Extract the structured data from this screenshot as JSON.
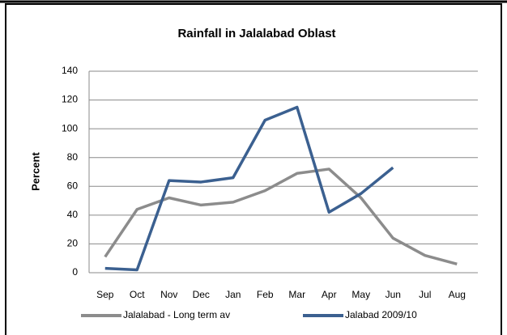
{
  "chart_data": {
    "type": "line",
    "title": "Rainfall in Jalalabad Oblast",
    "y_label": "Percent",
    "categories": [
      "Sep",
      "Oct",
      "Nov",
      "Dec",
      "Jan",
      "Feb",
      "Mar",
      "Apr",
      "May",
      "Jun",
      "Jul",
      "Aug"
    ],
    "series": [
      {
        "name": "Jalalabad - Long term av",
        "color": "#8c8c8c",
        "values": [
          11,
          44,
          52,
          47,
          49,
          57,
          69,
          72,
          52,
          24,
          12,
          6
        ]
      },
      {
        "name": "Jalabad 2009/10",
        "color": "#3b6090",
        "values": [
          3,
          2,
          64,
          63,
          66,
          106,
          115,
          42,
          55,
          73,
          null,
          null
        ]
      }
    ],
    "ylim": [
      0,
      140
    ],
    "yticks": [
      0,
      20,
      40,
      60,
      80,
      100,
      120,
      140
    ],
    "grid": true,
    "legend": "bottom"
  }
}
